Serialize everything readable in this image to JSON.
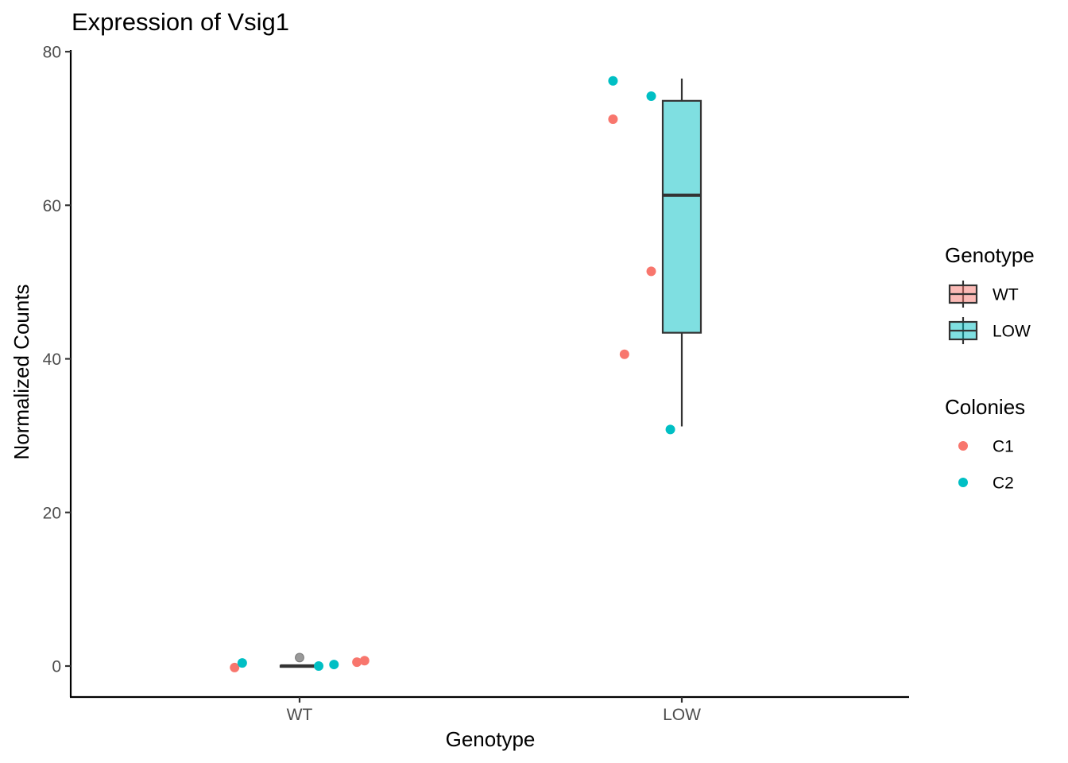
{
  "chart_data": {
    "type": "box",
    "title": "Expression of Vsig1",
    "xlabel": "Genotype",
    "ylabel": "Normalized Counts",
    "categories": [
      "WT",
      "LOW"
    ],
    "ylim": [
      -4,
      80
    ],
    "yticks": [
      0,
      20,
      40,
      60,
      80
    ],
    "grid": false,
    "box_colors": {
      "WT": "#F8766D",
      "LOW": "#00BFC4"
    },
    "colony_colors": {
      "C1": "#F8766D",
      "C2": "#00BFC4"
    },
    "boxes": [
      {
        "category": "WT",
        "q1": 0.0,
        "median": 0.0,
        "q3": 0.05,
        "whisker_low": 0.0,
        "whisker_high": 0.1,
        "outliers": [
          1.1
        ]
      },
      {
        "category": "LOW",
        "q1": 43.4,
        "median": 61.3,
        "q3": 73.6,
        "whisker_low": 31.2,
        "whisker_high": 76.5,
        "outliers": []
      }
    ],
    "points": [
      {
        "category": "WT",
        "offset": -0.17,
        "y": -0.2,
        "colony": "C1"
      },
      {
        "category": "WT",
        "offset": -0.15,
        "y": 0.4,
        "colony": "C2"
      },
      {
        "category": "WT",
        "offset": 0.05,
        "y": 0.0,
        "colony": "C2"
      },
      {
        "category": "WT",
        "offset": 0.09,
        "y": 0.2,
        "colony": "C2"
      },
      {
        "category": "WT",
        "offset": 0.15,
        "y": 0.5,
        "colony": "C1"
      },
      {
        "category": "WT",
        "offset": 0.17,
        "y": 0.7,
        "colony": "C1"
      },
      {
        "category": "LOW",
        "offset": -0.18,
        "y": 76.2,
        "colony": "C2"
      },
      {
        "category": "LOW",
        "offset": -0.18,
        "y": 71.2,
        "colony": "C1"
      },
      {
        "category": "LOW",
        "offset": -0.15,
        "y": 40.6,
        "colony": "C1"
      },
      {
        "category": "LOW",
        "offset": -0.08,
        "y": 74.2,
        "colony": "C2"
      },
      {
        "category": "LOW",
        "offset": -0.08,
        "y": 51.4,
        "colony": "C1"
      },
      {
        "category": "LOW",
        "offset": -0.03,
        "y": 30.8,
        "colony": "C2"
      }
    ],
    "legends": [
      {
        "title": "Genotype",
        "kind": "box",
        "entries": [
          {
            "label": "WT",
            "color": "#F8766D"
          },
          {
            "label": "LOW",
            "color": "#00BFC4"
          }
        ]
      },
      {
        "title": "Colonies",
        "kind": "point",
        "entries": [
          {
            "label": "C1",
            "color": "#F8766D"
          },
          {
            "label": "C2",
            "color": "#00BFC4"
          }
        ]
      }
    ],
    "legend_position": "right"
  }
}
